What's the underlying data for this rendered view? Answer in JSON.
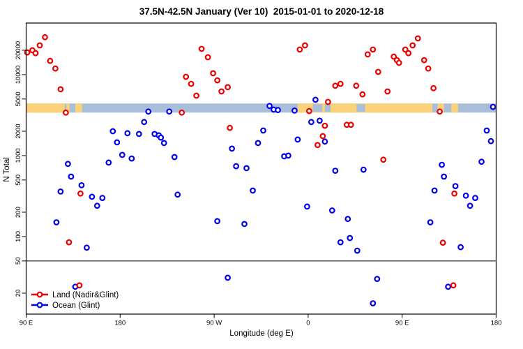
{
  "title": "37.5N-42.5N January (Ver 10)  2015-01-01 to 2020-12-18",
  "chart_data": {
    "type": "scatter",
    "xlabel": "Longitude (deg E)",
    "ylabel": "N Total",
    "x_axis": {
      "start_deg": 90,
      "end_deg": 540,
      "ticks": [
        {
          "deg": 90,
          "label": "90 E"
        },
        {
          "deg": 180,
          "label": "180"
        },
        {
          "deg": 270,
          "label": "90 W"
        },
        {
          "deg": 360,
          "label": "0"
        },
        {
          "deg": 450,
          "label": "90 E"
        },
        {
          "deg": 540,
          "label": "180"
        }
      ]
    },
    "y_axis": {
      "scale": "log",
      "ticks": [
        20000,
        10000,
        5000,
        2000,
        1000,
        500,
        200,
        100,
        50,
        20
      ],
      "range": [
        10,
        43000
      ]
    },
    "reference_line_n": 50,
    "map_strip": {
      "description": "land/ocean strip for latitude band",
      "n_top": 4400,
      "n_bottom": 3400,
      "land_color": "#FAD279",
      "ocean_color": "#A9BED9",
      "land_segments_deg": [
        [
          90,
          127
        ],
        [
          128.5,
          131.5
        ],
        [
          137,
          143.5
        ],
        [
          350,
          479
        ],
        [
          484,
          490
        ],
        [
          497,
          503.5
        ]
      ],
      "ocean_patches_deg": [
        [
          364.5,
          373.5
        ],
        [
          376,
          381.5
        ],
        [
          406.5,
          414.5
        ]
      ]
    },
    "legend": {
      "position": "bottom-left"
    },
    "series": [
      {
        "name": "Land (Nadir&Glint)",
        "color": "#EE0000",
        "points": [
          [
            108,
            29000
          ],
          [
            103,
            23000
          ],
          [
            96,
            20000
          ],
          [
            91,
            18800
          ],
          [
            99,
            18400
          ],
          [
            113,
            14800
          ],
          [
            118,
            11900
          ],
          [
            123,
            6600
          ],
          [
            128,
            3400
          ],
          [
            243,
            9400
          ],
          [
            248,
            7700
          ],
          [
            253,
            5500
          ],
          [
            258,
            20800
          ],
          [
            264,
            16400
          ],
          [
            269,
            10400
          ],
          [
            273,
            8500
          ],
          [
            277,
            6200
          ],
          [
            283,
            7000
          ],
          [
            239,
            3400
          ],
          [
            285,
            2200
          ],
          [
            142,
            340
          ],
          [
            352,
            20400
          ],
          [
            357,
            23000
          ],
          [
            417,
            17800
          ],
          [
            422,
            20400
          ],
          [
            427,
            10800
          ],
          [
            442,
            16700
          ],
          [
            445,
            15100
          ],
          [
            447,
            14000
          ],
          [
            453,
            20400
          ],
          [
            456,
            18400
          ],
          [
            460,
            23000
          ],
          [
            465,
            28000
          ],
          [
            471,
            15100
          ],
          [
            475,
            11900
          ],
          [
            480,
            6800
          ],
          [
            386,
            7300
          ],
          [
            391,
            7700
          ],
          [
            406,
            7300
          ],
          [
            412,
            5700
          ],
          [
            436,
            6200
          ],
          [
            379,
            4600
          ],
          [
            361,
            3550
          ],
          [
            486,
            3500
          ],
          [
            376,
            2340
          ],
          [
            397,
            2400
          ],
          [
            401,
            2400
          ],
          [
            374,
            1740
          ],
          [
            369,
            1350
          ],
          [
            432,
            890
          ],
          [
            500,
            340
          ],
          [
            131,
            85
          ],
          [
            141,
            25
          ],
          [
            489,
            84
          ],
          [
            499,
            25
          ]
        ]
      },
      {
        "name": "Ocean (Glint)",
        "color": "#0000EE",
        "points": [
          [
            207,
            3500
          ],
          [
            227,
            3500
          ],
          [
            323,
            4100
          ],
          [
            327,
            3700
          ],
          [
            331,
            3650
          ],
          [
            347,
            3600
          ],
          [
            367,
            4900
          ],
          [
            537,
            4000
          ],
          [
            203,
            2600
          ],
          [
            173,
            2000
          ],
          [
            177,
            1460
          ],
          [
            187,
            1890
          ],
          [
            198,
            1850
          ],
          [
            213,
            1850
          ],
          [
            217,
            1780
          ],
          [
            219,
            1670
          ],
          [
            222,
            1430
          ],
          [
            182,
            1020
          ],
          [
            191,
            920
          ],
          [
            169,
            820
          ],
          [
            232,
            960
          ],
          [
            130,
            790
          ],
          [
            133,
            550
          ],
          [
            143,
            430
          ],
          [
            123,
            360
          ],
          [
            153,
            310
          ],
          [
            158,
            240
          ],
          [
            163,
            300
          ],
          [
            235,
            330
          ],
          [
            287,
            1220
          ],
          [
            291,
            740
          ],
          [
            301,
            700
          ],
          [
            307,
            370
          ],
          [
            317,
            2040
          ],
          [
            312,
            1430
          ],
          [
            363,
            2600
          ],
          [
            371,
            2700
          ],
          [
            376,
            1490
          ],
          [
            350,
            1580
          ],
          [
            337,
            980
          ],
          [
            341,
            1000
          ],
          [
            386,
            650
          ],
          [
            413,
            670
          ],
          [
            488,
            770
          ],
          [
            490,
            550
          ],
          [
            501,
            420
          ],
          [
            481,
            370
          ],
          [
            511,
            320
          ],
          [
            520,
            300
          ],
          [
            515,
            240
          ],
          [
            531,
            2040
          ],
          [
            535,
            1510
          ],
          [
            526,
            840
          ],
          [
            119,
            150
          ],
          [
            148,
            73
          ],
          [
            273,
            155
          ],
          [
            299,
            143
          ],
          [
            283,
            31
          ],
          [
            137,
            24
          ],
          [
            359,
            235
          ],
          [
            383,
            210
          ],
          [
            398,
            165
          ],
          [
            391,
            85
          ],
          [
            400,
            96
          ],
          [
            407,
            67
          ],
          [
            477,
            150
          ],
          [
            506,
            74
          ],
          [
            426,
            30
          ],
          [
            494,
            24
          ],
          [
            422,
            15
          ]
        ]
      }
    ]
  }
}
